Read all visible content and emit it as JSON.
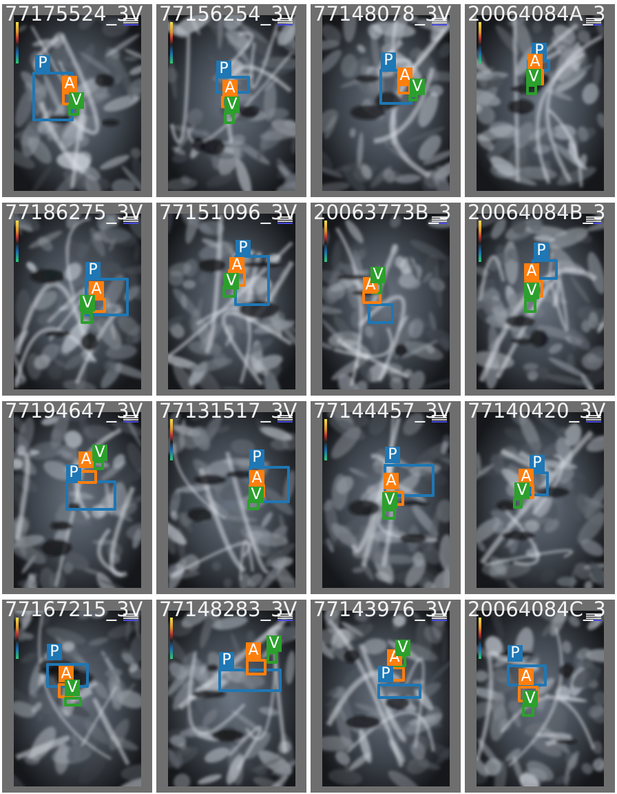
{
  "legend": {
    "P": "P",
    "A": "A",
    "V": "V"
  },
  "colors": {
    "P": "#1f77b4",
    "A": "#ff7f0e",
    "V": "#2ca02c",
    "tile_bg": "#6e6e6e"
  },
  "tiles": [
    {
      "title": "77175524_3V"
    },
    {
      "title": "77156254_3V"
    },
    {
      "title": "77148078_3V"
    },
    {
      "title": "20064084A_3"
    },
    {
      "title": "77186275_3V"
    },
    {
      "title": "77151096_3V"
    },
    {
      "title": "20063773B_3"
    },
    {
      "title": "20064084B_3"
    },
    {
      "title": "77194647_3V"
    },
    {
      "title": "77131517_3V"
    },
    {
      "title": "77144457_3V"
    },
    {
      "title": "77140420_3V"
    },
    {
      "title": "77167215_3V"
    },
    {
      "title": "77148283_3V"
    },
    {
      "title": "77143976_3V"
    },
    {
      "title": "20064084C_3"
    }
  ]
}
